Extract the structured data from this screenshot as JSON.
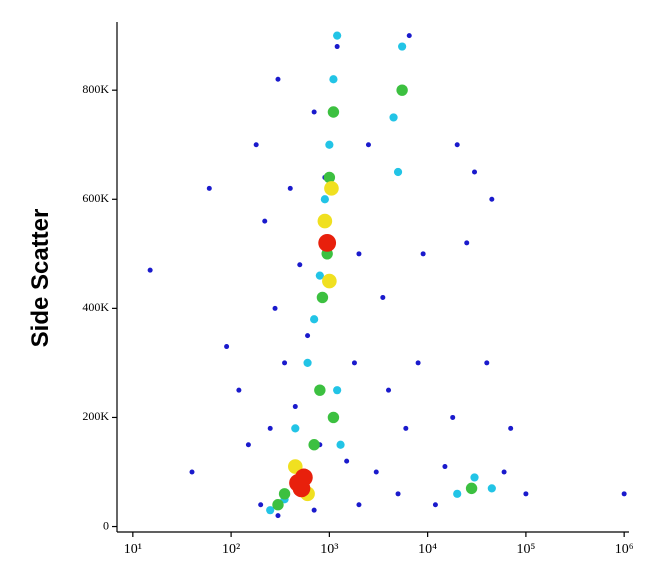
{
  "chart_data": {
    "type": "scatter",
    "ylabel": "Side Scatter",
    "xscale": "log",
    "xlim": [
      6.9,
      1120000
    ],
    "ylim": [
      -10000,
      925000
    ],
    "xticks": [
      {
        "value": 10,
        "label": "10¹"
      },
      {
        "value": 100,
        "label": "10²"
      },
      {
        "value": 1000,
        "label": "10³"
      },
      {
        "value": 10000,
        "label": "10⁴"
      },
      {
        "value": 100000,
        "label": "10⁵"
      },
      {
        "value": 1000000,
        "label": "10⁶"
      }
    ],
    "yticks": [
      0,
      {
        "value": 200000,
        "label": "200K"
      },
      {
        "value": 400000,
        "label": "400K"
      },
      {
        "value": 600000,
        "label": "600K"
      },
      {
        "value": 800000,
        "label": "800K"
      }
    ],
    "series": [
      {
        "color": "#1a1acc",
        "x": [
          15,
          40,
          60,
          90,
          120,
          150,
          180,
          200,
          220,
          250,
          280,
          300,
          350,
          400,
          450,
          500,
          600,
          700,
          800,
          900,
          1500,
          1800,
          2000,
          2500,
          3000,
          3500,
          4000,
          5000,
          6000,
          8000,
          9000,
          15000,
          20000,
          25000,
          30000,
          40000,
          60000,
          70000,
          100000,
          1000000,
          300,
          700,
          2000,
          12000,
          18000,
          45000,
          1200,
          6500
        ],
        "values": [
          470000,
          100000,
          620000,
          330000,
          250000,
          150000,
          700000,
          40000,
          560000,
          180000,
          400000,
          820000,
          300000,
          620000,
          220000,
          480000,
          350000,
          760000,
          150000,
          640000,
          120000,
          300000,
          500000,
          700000,
          100000,
          420000,
          250000,
          60000,
          180000,
          300000,
          500000,
          110000,
          700000,
          520000,
          650000,
          300000,
          100000,
          180000,
          60000,
          60000,
          20000,
          30000,
          40000,
          40000,
          200000,
          600000,
          880000,
          900000
        ]
      },
      {
        "color": "#22c4e6",
        "x": [
          250,
          350,
          450,
          600,
          700,
          800,
          900,
          1000,
          1100,
          1200,
          1300,
          4500,
          5000,
          5500,
          20000,
          30000,
          45000,
          1200
        ],
        "values": [
          30000,
          50000,
          180000,
          300000,
          380000,
          460000,
          600000,
          700000,
          820000,
          250000,
          150000,
          750000,
          650000,
          880000,
          60000,
          90000,
          70000,
          900000
        ]
      },
      {
        "color": "#3cc040",
        "x": [
          700,
          800,
          850,
          950,
          1000,
          1100,
          1100,
          5500,
          28000,
          350,
          300
        ],
        "values": [
          150000,
          250000,
          420000,
          500000,
          640000,
          760000,
          200000,
          800000,
          70000,
          60000,
          40000
        ]
      },
      {
        "color": "#f0e020",
        "x": [
          450,
          600,
          900,
          1000,
          1050
        ],
        "values": [
          110000,
          60000,
          560000,
          450000,
          620000
        ]
      },
      {
        "color": "#e8200c",
        "x": [
          480,
          550,
          520,
          950
        ],
        "values": [
          80000,
          90000,
          70000,
          520000
        ]
      }
    ]
  }
}
